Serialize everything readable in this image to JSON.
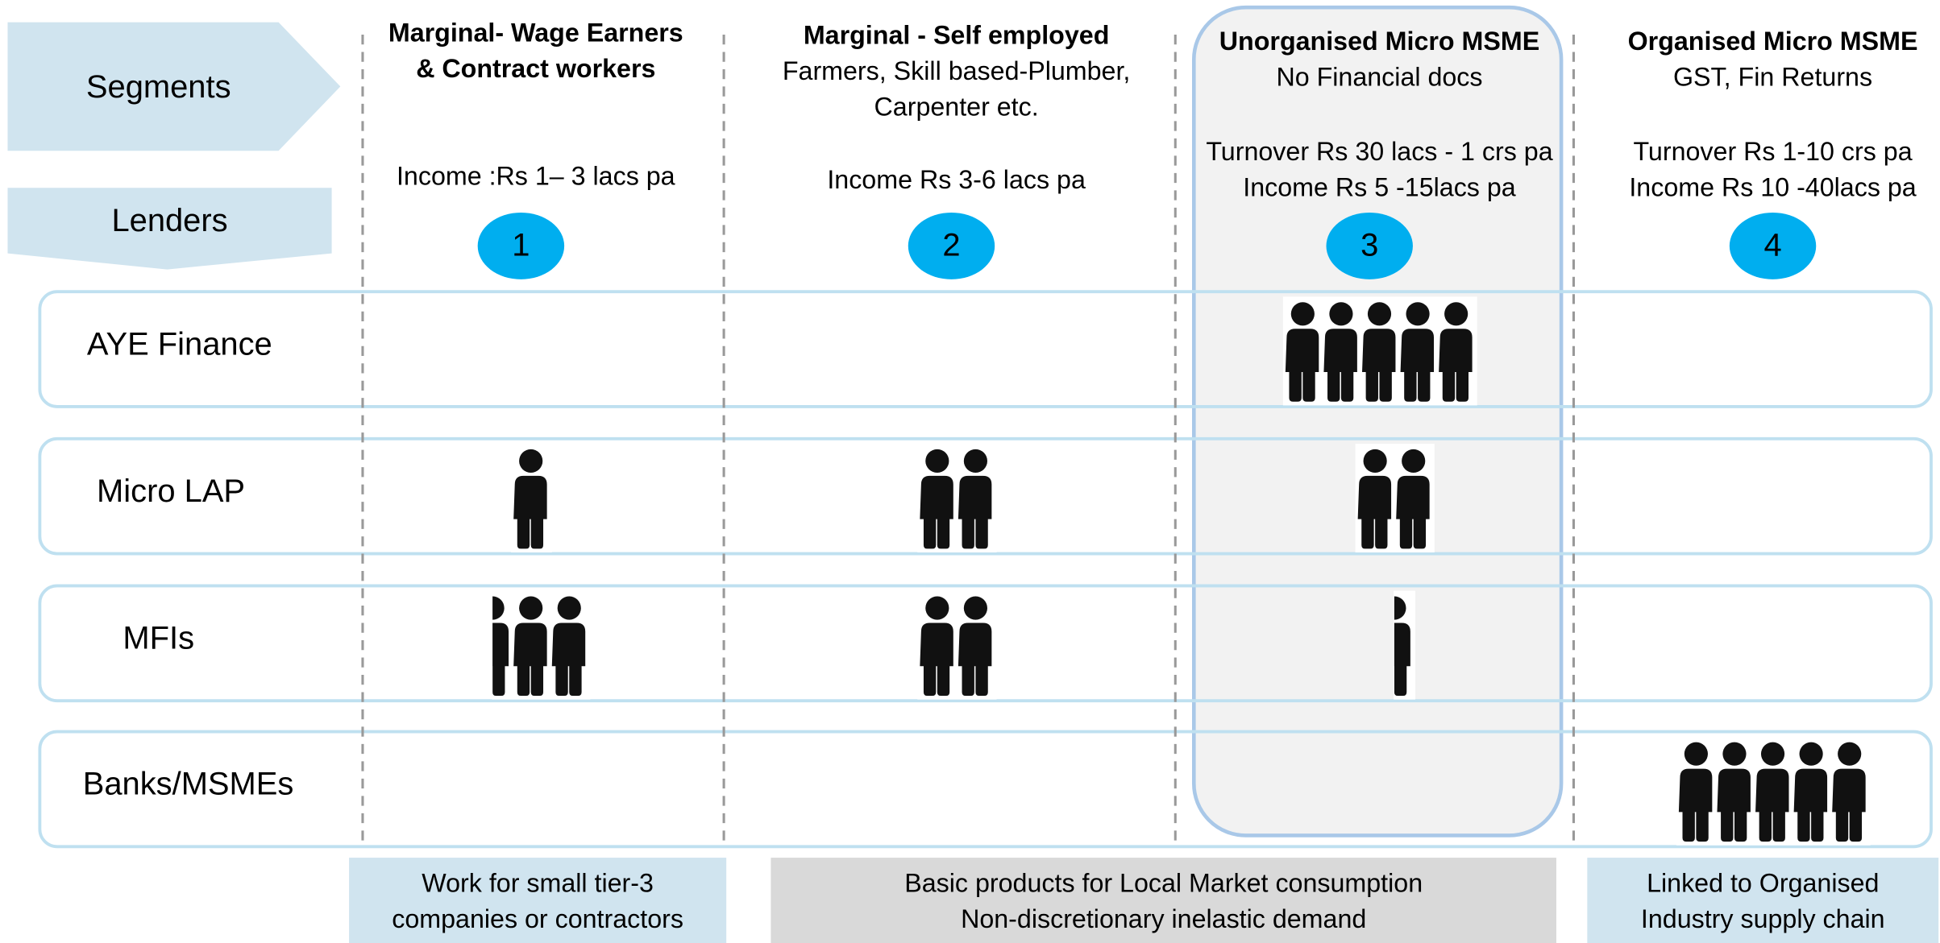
{
  "header": {
    "segments": "Segments",
    "lenders": "Lenders"
  },
  "columns": [
    {
      "title": [
        "Marginal- Wage Earners",
        "& Contract workers"
      ],
      "lines": [],
      "income": [
        "Income :Rs 1– 3 lacs pa"
      ],
      "number": 1
    },
    {
      "title": [
        "Marginal - Self employed"
      ],
      "lines": [
        "Farmers, Skill based-Plumber,",
        "Carpenter etc."
      ],
      "income": [
        "Income Rs 3-6 lacs pa"
      ],
      "number": 2
    },
    {
      "title": [
        "Unorganised Micro MSME"
      ],
      "lines": [
        "No Financial docs"
      ],
      "income": [
        "Turnover Rs 30 lacs - 1 crs pa",
        "Income Rs 5 -15lacs pa"
      ],
      "number": 3
    },
    {
      "title": [
        "Organised Micro MSME"
      ],
      "lines": [
        "GST, Fin Returns"
      ],
      "income": [
        "Turnover Rs 1-10 crs pa",
        "Income Rs 10 -40lacs pa"
      ],
      "number": 4
    }
  ],
  "rows": [
    {
      "label": "AYE Finance",
      "icons": [
        0,
        0,
        5,
        0
      ]
    },
    {
      "label": "Micro LAP",
      "icons": [
        1,
        2,
        2,
        0
      ]
    },
    {
      "label": "MFIs",
      "icons": [
        2.5,
        2,
        0.5,
        0
      ]
    },
    {
      "label": "Banks/MSMEs",
      "icons": [
        0,
        0,
        0,
        5
      ]
    }
  ],
  "footer": [
    [
      "Work for small tier-3",
      "companies or contractors"
    ],
    [
      "Basic products for  Local Market consumption",
      "Non-discretionary inelastic demand"
    ],
    [
      "Linked to Organised",
      "Industry supply chain"
    ]
  ]
}
